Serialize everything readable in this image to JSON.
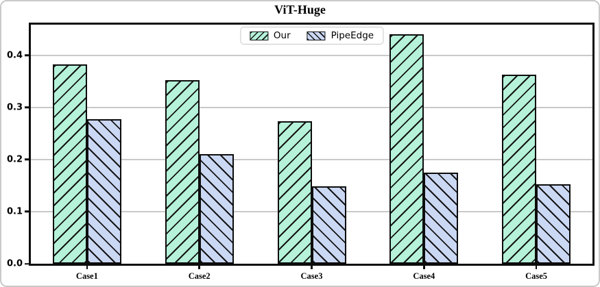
{
  "chart_data": {
    "type": "bar",
    "title": "ViT-Huge",
    "categories": [
      "Case1",
      "Case2",
      "Case3",
      "Case4",
      "Case5"
    ],
    "series": [
      {
        "name": "Our",
        "color": "#b5f2d9",
        "hatch": "/",
        "values": [
          0.383,
          0.352,
          0.273,
          0.44,
          0.363
        ]
      },
      {
        "name": "PipeEdge",
        "color": "#cbd8f4",
        "hatch": "\\",
        "values": [
          0.278,
          0.21,
          0.149,
          0.175,
          0.152
        ]
      }
    ],
    "xlabel": "",
    "ylabel": "",
    "ylim": [
      0,
      0.459
    ],
    "yticks": [
      0,
      0.1,
      0.2,
      0.3,
      0.4
    ],
    "ytick_labels": [
      "0.0",
      "0.1",
      "0.2",
      "0.3",
      "0.4"
    ],
    "grid": true,
    "legend_position": "upper center",
    "colors": {
      "grid": "#c8c8c8",
      "spine": "#0d0d0d",
      "hatch_line": "#141414",
      "plot_background": "#ffffff"
    }
  }
}
